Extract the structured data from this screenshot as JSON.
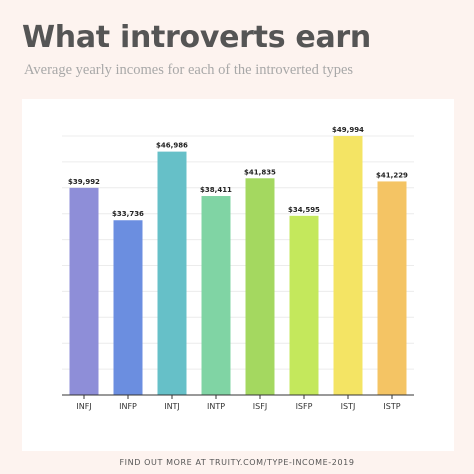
{
  "header": {
    "title": "What introverts earn",
    "subtitle": "Average yearly incomes for each of the introverted types"
  },
  "footer": {
    "text": "FIND OUT MORE AT TRUITY.COM/TYPE-INCOME-2019"
  },
  "chart_data": {
    "type": "bar",
    "categories": [
      "INFJ",
      "INFP",
      "INTJ",
      "INTP",
      "ISFJ",
      "ISFP",
      "ISTJ",
      "ISTP"
    ],
    "values": [
      39992,
      33736,
      46986,
      38411,
      41835,
      34595,
      49994,
      41229
    ],
    "value_labels": [
      "$39,992",
      "$33,736",
      "$46,986",
      "$38,411",
      "$41,835",
      "$34,595",
      "$49,994",
      "$41,229"
    ],
    "colors": [
      "#8e8ed8",
      "#6b8ee0",
      "#66c0c8",
      "#80d4a4",
      "#a4d860",
      "#c4e85c",
      "#f4e464",
      "#f4c464"
    ],
    "ylim": [
      0,
      50000
    ],
    "grid": true,
    "legend": false
  }
}
